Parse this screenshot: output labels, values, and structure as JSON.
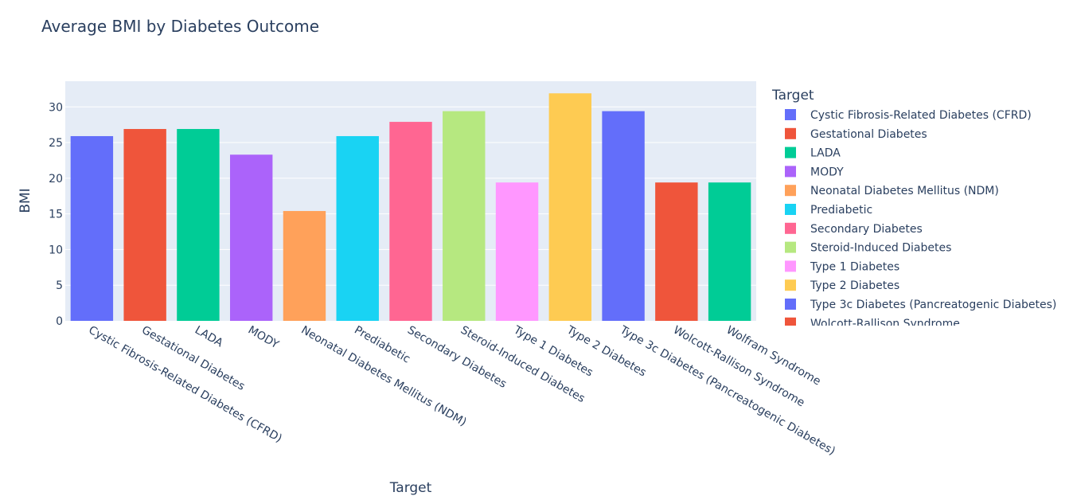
{
  "chart_data": {
    "type": "bar",
    "title": "Average BMI by Diabetes Outcome",
    "xlabel": "Target",
    "ylabel": "BMI",
    "ylim": [
      0,
      33.6
    ],
    "yticks": [
      0,
      5,
      10,
      15,
      20,
      25,
      30
    ],
    "grid": true,
    "legend_title": "Target",
    "legend_position": "right",
    "categories": [
      "Cystic Fibrosis-Related Diabetes (CFRD)",
      "Gestational Diabetes",
      "LADA",
      "MODY",
      "Neonatal Diabetes Mellitus (NDM)",
      "Prediabetic",
      "Secondary Diabetes",
      "Steroid-Induced Diabetes",
      "Type 1 Diabetes",
      "Type 2 Diabetes",
      "Type 3c Diabetes (Pancreatogenic Diabetes)",
      "Wolcott-Rallison Syndrome",
      "Wolfram Syndrome"
    ],
    "values": [
      25.9,
      26.9,
      26.9,
      23.3,
      15.4,
      25.9,
      27.9,
      29.4,
      19.4,
      31.9,
      29.4,
      19.4,
      19.4
    ],
    "colors": [
      "#636efa",
      "#EF553B",
      "#00cc96",
      "#ab63fa",
      "#FFA15A",
      "#19d3f3",
      "#FF6692",
      "#B6E880",
      "#FF97FF",
      "#FECB52",
      "#636efa",
      "#EF553B",
      "#00cc96"
    ]
  }
}
